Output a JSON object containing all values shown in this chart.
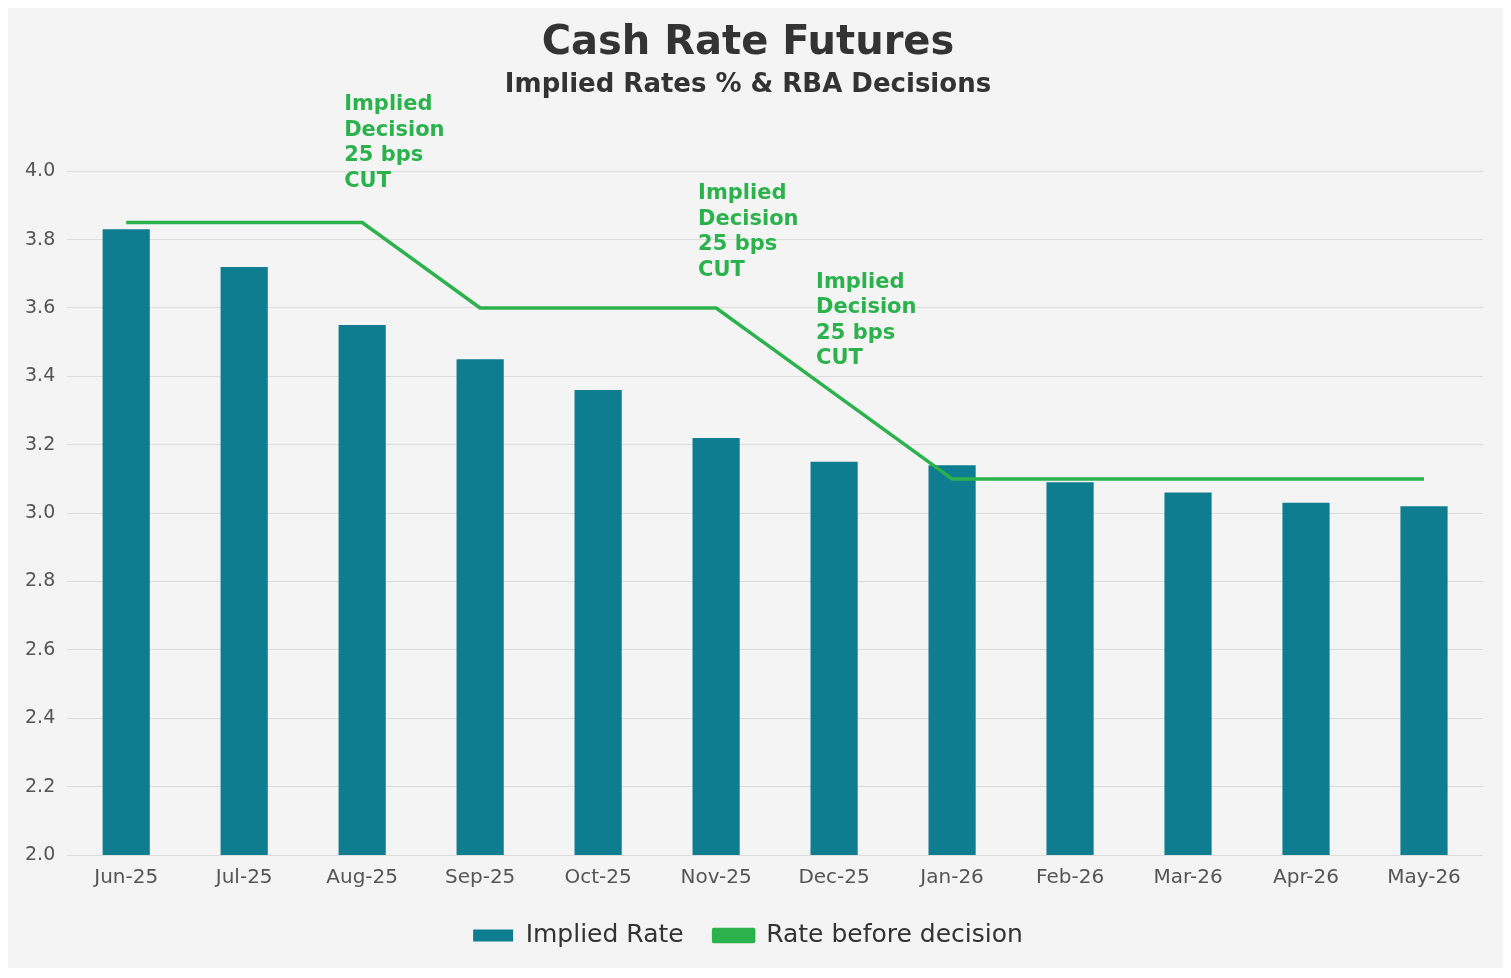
{
  "chart_data": {
    "type": "bar",
    "title": "Cash Rate Futures",
    "subtitle": "Implied Rates % & RBA Decisions",
    "categories": [
      "Jun-25",
      "Jul-25",
      "Aug-25",
      "Sep-25",
      "Oct-25",
      "Nov-25",
      "Dec-25",
      "Jan-26",
      "Feb-26",
      "Mar-26",
      "Apr-26",
      "May-26"
    ],
    "series": [
      {
        "name": "Implied Rate",
        "color": "#0e7d8f",
        "values": [
          3.83,
          3.72,
          3.55,
          3.45,
          3.36,
          3.22,
          3.15,
          3.14,
          3.09,
          3.06,
          3.03,
          3.02
        ]
      },
      {
        "name": "Rate before decision",
        "type": "line",
        "color": "#2bb24c",
        "values": [
          3.85,
          3.85,
          3.85,
          3.6,
          3.6,
          3.6,
          3.35,
          3.1,
          3.1,
          3.1,
          3.1,
          3.1
        ]
      }
    ],
    "ylim": [
      2.0,
      4.0
    ],
    "yticks": [
      {
        "value": 2,
        "label": "2.0"
      },
      2.2,
      2.4,
      2.6,
      2.8,
      {
        "value": 3,
        "label": "3.0"
      },
      3.2,
      3.4,
      3.6,
      3.8,
      {
        "value": 4,
        "label": "4.0"
      }
    ],
    "grid": "y",
    "legend": "bottom",
    "marker": "none",
    "annotations": [
      "Implied\nDecision\n25 bps\nCUT",
      "Implied\nDecision\n25 bps\nCUT",
      "Implied\nDecision\n25 bps\nCUT"
    ]
  }
}
